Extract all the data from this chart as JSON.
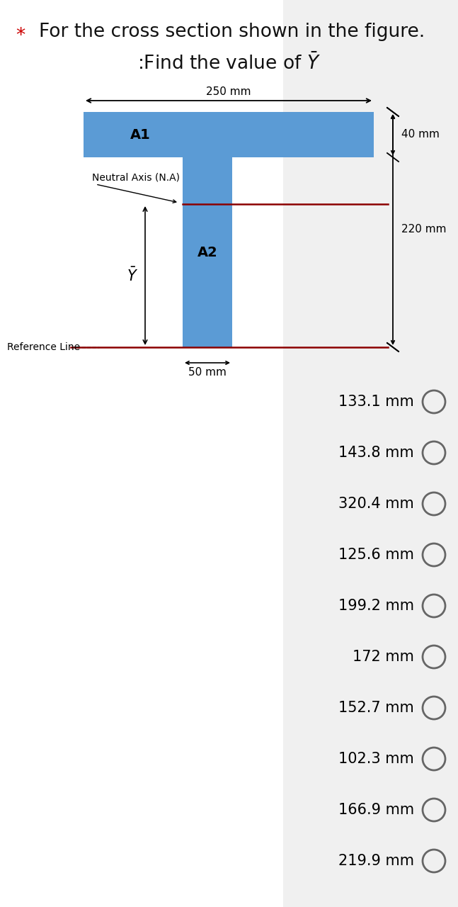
{
  "title_line1": "For the cross section shown in the figure.",
  "title_line2": ":Find the value of $\\bar{Y}$",
  "star": "*",
  "bg_color": "#ffffff",
  "shape_color": "#5b9bd5",
  "na_line_color": "#8b0000",
  "ref_line_color": "#8b0000",
  "dim_250": "250 mm",
  "dim_40": "40 mm",
  "dim_220": "220 mm",
  "dim_50": "50 mm",
  "label_A1": "A1",
  "label_A2": "A2",
  "label_NA": "Neutral Axis (N.A)",
  "label_Ybar": "$\\bar{Y}$",
  "label_ref": "Reference Line",
  "options": [
    "133.1 mm",
    "143.8 mm",
    "320.4 mm",
    "125.6 mm",
    "199.2 mm",
    "172 mm",
    "152.7 mm",
    "102.3 mm",
    "166.9 mm",
    "219.9 mm"
  ],
  "option_circle_color": "#666666",
  "title_fontsize": 19,
  "option_fontsize": 15
}
